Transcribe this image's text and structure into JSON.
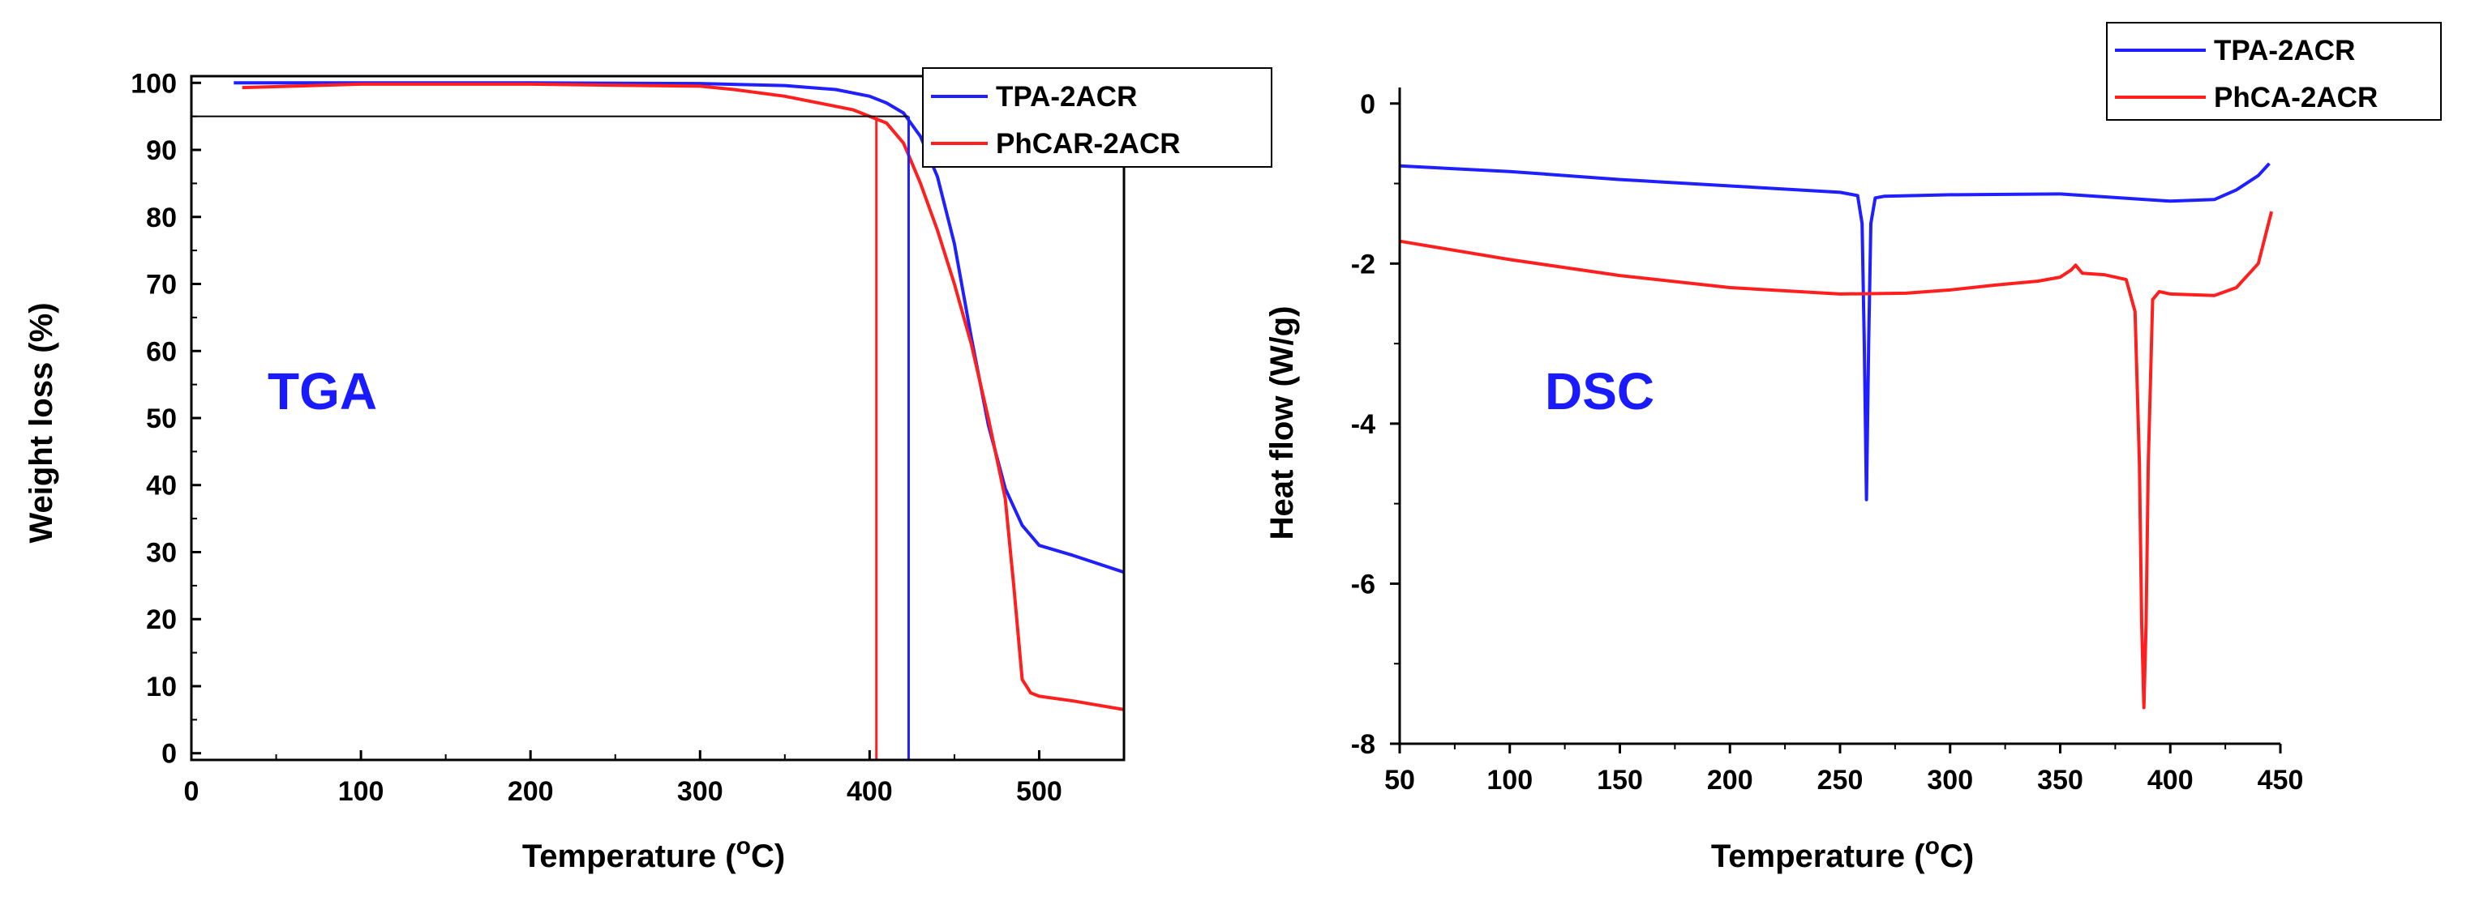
{
  "colors": {
    "blue": "#1f1fff",
    "red": "#ff1f1f",
    "annotation": "#1a1aff"
  },
  "chart_data": [
    {
      "type": "line",
      "id": "tga",
      "title": "",
      "xlabel": "Temperature (",
      "xlabel_deg": "o",
      "xlabel_unit": "C)",
      "ylabel": "Weight loss (%)",
      "xlim": [
        0,
        550
      ],
      "ylim": [
        -1,
        101
      ],
      "xticks": [
        0,
        100,
        200,
        300,
        400,
        500
      ],
      "yticks": [
        0,
        10,
        20,
        30,
        40,
        50,
        60,
        70,
        80,
        90,
        100
      ],
      "xtick_labels": [
        "0",
        "100",
        "200",
        "300",
        "400",
        "500"
      ],
      "ytick_labels": [
        "0",
        "10",
        "20",
        "30",
        "40",
        "50",
        "60",
        "70",
        "80",
        "90",
        "100"
      ],
      "annotation": "TGA",
      "legend": {
        "position": "top-right",
        "entries": [
          "TPA-2ACR",
          "PhCAR-2ACR"
        ]
      },
      "reference_lines": {
        "y95": 95,
        "td_blue": 423,
        "td_red": 404
      },
      "series": [
        {
          "name": "TPA-2ACR",
          "color": "#1f1fff",
          "x": [
            25,
            100,
            200,
            300,
            350,
            380,
            400,
            410,
            420,
            430,
            440,
            450,
            460,
            470,
            480,
            490,
            500,
            520,
            550
          ],
          "y": [
            100,
            100,
            100,
            99.9,
            99.6,
            99,
            98,
            97,
            95.5,
            92,
            86,
            76,
            62,
            49,
            39.5,
            34,
            31,
            29.5,
            27
          ]
        },
        {
          "name": "PhCAR-2ACR",
          "color": "#ff1f1f",
          "x": [
            30,
            100,
            200,
            300,
            320,
            350,
            370,
            390,
            400,
            410,
            420,
            430,
            440,
            450,
            460,
            470,
            480,
            485,
            490,
            495,
            500,
            520,
            550
          ],
          "y": [
            99.3,
            99.8,
            99.8,
            99.5,
            99,
            98,
            97,
            96,
            95,
            94,
            91,
            85,
            78,
            70,
            61,
            50,
            38,
            25,
            11,
            9,
            8.5,
            7.8,
            6.5
          ]
        }
      ]
    },
    {
      "type": "line",
      "id": "dsc",
      "title": "",
      "xlabel": "Temperature (",
      "xlabel_deg": "o",
      "xlabel_unit": "C)",
      "ylabel": "Heat flow (W/g)",
      "xlim": [
        50,
        450
      ],
      "ylim": [
        -8,
        0.2
      ],
      "xticks": [
        50,
        100,
        150,
        200,
        250,
        300,
        350,
        400,
        450
      ],
      "yticks": [
        0,
        -2,
        -4,
        -6,
        -8
      ],
      "xtick_labels": [
        "50",
        "100",
        "150",
        "200",
        "250",
        "300",
        "350",
        "400",
        "450"
      ],
      "ytick_labels": [
        "0",
        "-2",
        "-4",
        "-6",
        "-8"
      ],
      "annotation": "DSC",
      "legend": {
        "position": "top-right",
        "entries": [
          "TPA-2ACR",
          "PhCA-2ACR"
        ]
      },
      "series": [
        {
          "name": "TPA-2ACR",
          "color": "#1f1fff",
          "x": [
            50,
            100,
            150,
            200,
            250,
            258,
            260,
            261,
            262,
            263,
            264,
            266,
            270,
            300,
            350,
            400,
            420,
            430,
            440,
            445
          ],
          "y": [
            -0.78,
            -0.85,
            -0.95,
            -1.03,
            -1.11,
            -1.15,
            -1.5,
            -3,
            -4.95,
            -3,
            -1.5,
            -1.18,
            -1.16,
            -1.14,
            -1.13,
            -1.22,
            -1.2,
            -1.08,
            -0.9,
            -0.75
          ]
        },
        {
          "name": "PhCA-2ACR",
          "color": "#ff1f1f",
          "x": [
            50,
            100,
            150,
            200,
            250,
            280,
            300,
            320,
            340,
            350,
            355,
            357,
            360,
            370,
            380,
            384,
            386,
            387,
            388,
            389,
            390,
            392,
            395,
            400,
            420,
            430,
            440,
            446
          ],
          "y": [
            -1.72,
            -1.95,
            -2.15,
            -2.3,
            -2.38,
            -2.37,
            -2.33,
            -2.27,
            -2.22,
            -2.17,
            -2.08,
            -2.02,
            -2.12,
            -2.14,
            -2.2,
            -2.6,
            -4.5,
            -6.5,
            -7.55,
            -6.5,
            -4.5,
            -2.45,
            -2.35,
            -2.38,
            -2.4,
            -2.3,
            -2.0,
            -1.35
          ]
        }
      ]
    }
  ]
}
